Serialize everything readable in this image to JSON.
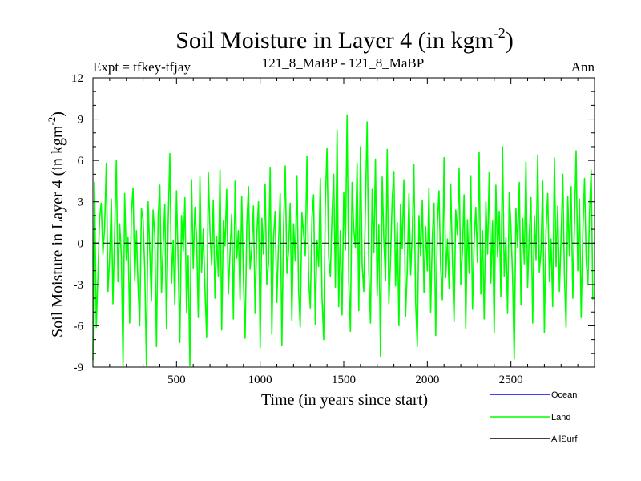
{
  "header": {
    "expt": "Expt = tfkey-tfjay",
    "run": "121_8_MaBP - 121_8_MaBP",
    "season": "Ann"
  },
  "colors": {
    "ocean": "#0000ff",
    "land": "#00ff00",
    "allsurf": "#000000",
    "zero_line": "#000000"
  },
  "chart_data": {
    "type": "line",
    "title_main": "Soil Moisture in Layer 4 (in kgm",
    "title_sup": "-2",
    "title_close": ")",
    "xlabel": "Time (in years since start)",
    "ylabel_main": "Soil Moisture in Layer 4 (in kgm",
    "ylabel_sup": "-2",
    "ylabel_close": ")",
    "xlim": [
      0,
      3000
    ],
    "ylim": [
      -9,
      12
    ],
    "xticks": [
      500,
      1000,
      1500,
      2000,
      2500
    ],
    "yticks": [
      -9,
      -6,
      -3,
      0,
      3,
      6,
      9,
      12
    ],
    "zero_line": true,
    "grid": false,
    "legend_position": "bottom-right, below plot",
    "legend": [
      {
        "name": "Ocean",
        "color": "#0000ff"
      },
      {
        "name": "Land",
        "color": "#00ff00"
      },
      {
        "name": "AllSurf",
        "color": "#000000"
      }
    ],
    "series": [
      {
        "name": "Land",
        "color": "#00ff00",
        "x_start": 0,
        "x_step": 10,
        "values": [
          -8.5,
          4.4,
          -6.1,
          -2.3,
          1.8,
          2.9,
          -0.8,
          1.1,
          5.8,
          -3.5,
          -1.0,
          3.2,
          -4.4,
          0.7,
          6.0,
          -2.8,
          1.4,
          -0.9,
          -8.9,
          3.6,
          -1.2,
          0.4,
          -5.8,
          2.2,
          4.0,
          -2.7,
          0.9,
          -3.1,
          -6.0,
          2.5,
          1.7,
          -2.0,
          -8.9,
          3.0,
          -0.5,
          -4.2,
          2.4,
          0.6,
          -7.5,
          1.9,
          4.2,
          -3.6,
          -0.3,
          2.8,
          -6.2,
          1.5,
          6.5,
          -2.9,
          0.2,
          -4.5,
          3.8,
          -1.4,
          -7.2,
          2.0,
          -0.6,
          3.3,
          -5.0,
          -0.9,
          -8.9,
          4.6,
          -1.8,
          2.6,
          0.3,
          -5.4,
          4.8,
          -2.1,
          1.0,
          -3.3,
          -6.8,
          5.1,
          0.8,
          -1.6,
          3.1,
          -4.0,
          0.5,
          -2.4,
          5.3,
          -6.3,
          1.6,
          -0.2,
          3.9,
          -3.7,
          -0.7,
          2.1,
          -5.5,
          4.5,
          -1.1,
          0.9,
          -4.1,
          3.4,
          -2.5,
          -6.9,
          1.3,
          4.1,
          -1.9,
          -0.4,
          2.7,
          -5.1,
          0.6,
          3.0,
          -7.6,
          1.8,
          -0.8,
          4.3,
          -3.0,
          -1.5,
          5.5,
          -6.6,
          0.4,
          2.3,
          -4.3,
          -0.1,
          3.6,
          -7.4,
          1.1,
          5.6,
          -2.2,
          -0.6,
          2.9,
          -5.6,
          1.4,
          -1.3,
          4.9,
          -3.4,
          -6.1,
          2.2,
          0.7,
          -0.9,
          6.3,
          -2.6,
          -4.7,
          1.9,
          3.5,
          -5.9,
          0.2,
          -1.7,
          4.7,
          -3.9,
          -7.0,
          2.8,
          6.9,
          -1.0,
          -2.4,
          2.1,
          5.0,
          -3.2,
          8.2,
          -4.6,
          0.9,
          -5.2,
          3.7,
          -0.5,
          9.3,
          -2.8,
          -6.4,
          4.4,
          1.0,
          -0.3,
          5.8,
          -4.9,
          7.0,
          -1.6,
          -3.5,
          2.6,
          8.8,
          -2.0,
          -5.8,
          3.9,
          -0.7,
          6.1,
          -3.8,
          1.3,
          -8.2,
          4.8,
          0.1,
          -2.7,
          6.8,
          -4.4,
          -1.2,
          3.2,
          5.2,
          -3.1,
          1.5,
          -6.0,
          2.8,
          -0.4,
          4.6,
          -5.3,
          -1.9,
          3.6,
          -2.3,
          0.8,
          5.7,
          -4.2,
          -7.5,
          2.0,
          -0.9,
          3.1,
          -3.6,
          1.2,
          -2.0,
          4.0,
          -5.0,
          0.5,
          2.9,
          -6.7,
          1.4,
          3.8,
          -1.8,
          -4.1,
          6.2,
          -2.5,
          0.3,
          -3.3,
          4.3,
          -1.1,
          -5.7,
          2.4,
          0.6,
          5.4,
          -3.0,
          -0.5,
          3.5,
          -6.2,
          1.7,
          -2.2,
          4.9,
          -4.8,
          0.2,
          2.6,
          -1.4,
          6.6,
          -3.7,
          0.9,
          -5.5,
          3.0,
          -0.8,
          5.1,
          -2.9,
          1.6,
          -6.5,
          4.2,
          -1.0,
          2.3,
          -3.9,
          7.0,
          -2.4,
          0.4,
          -5.1,
          3.7,
          1.1,
          -2.6,
          -8.4,
          2.5,
          -0.3,
          4.4,
          -4.5,
          1.8,
          -1.5,
          5.9,
          -3.2,
          0.7,
          3.3,
          -5.8,
          2.0,
          -1.2,
          6.4,
          -2.1,
          -0.6,
          4.5,
          -6.5,
          1.0,
          3.6,
          -2.8,
          0.3,
          -4.6,
          6.2,
          -1.7,
          2.7,
          -3.5,
          0.5,
          5.0,
          -2.3,
          -6.1,
          3.4,
          -0.9,
          4.1,
          -4.0,
          1.5,
          6.7,
          -2.0,
          3.2,
          -5.4,
          0.8,
          4.7,
          -1.3,
          -3.0,
          2.2,
          5.3,
          -4.1
        ]
      }
    ]
  }
}
